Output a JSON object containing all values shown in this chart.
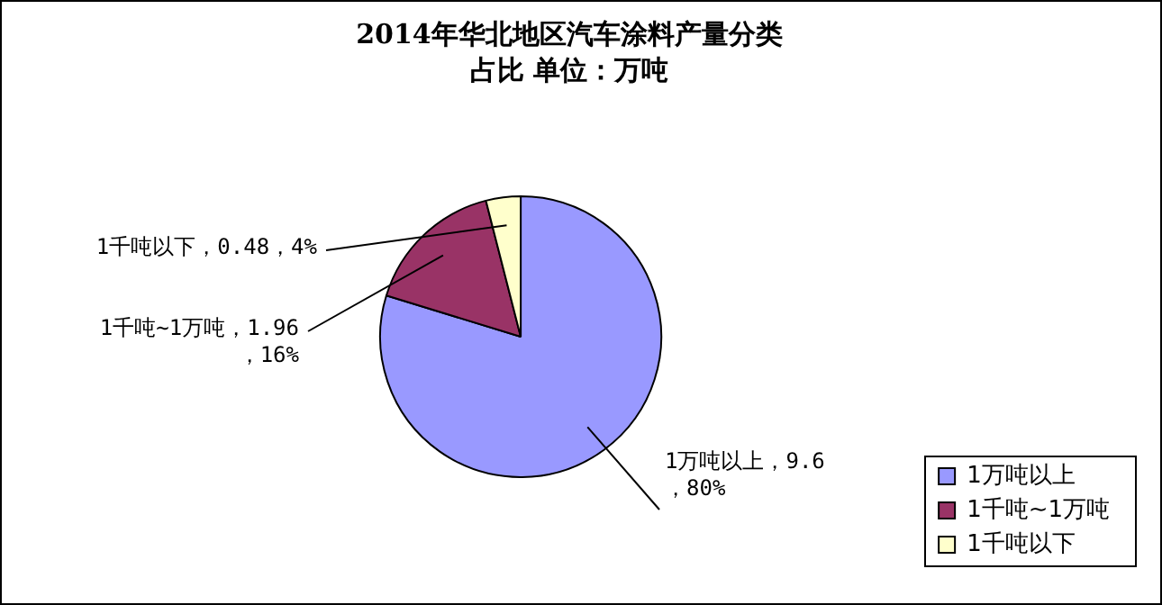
{
  "chart_data": {
    "type": "pie",
    "title": "2014年华北地区汽车涂料产量分类占比 单位：万吨",
    "categories": [
      "1万吨以上",
      "1千吨~1万吨",
      "1千吨以下"
    ],
    "values": [
      9.6,
      1.96,
      0.48
    ],
    "colors": [
      "#9999ff",
      "#993366",
      "#ffffcc"
    ],
    "value_labels": [
      "1万吨以上，9.6，80%",
      "1千吨~1万吨，1.96，16%",
      "1千吨以下，0.48，4%"
    ],
    "legend": "bottom right"
  }
}
